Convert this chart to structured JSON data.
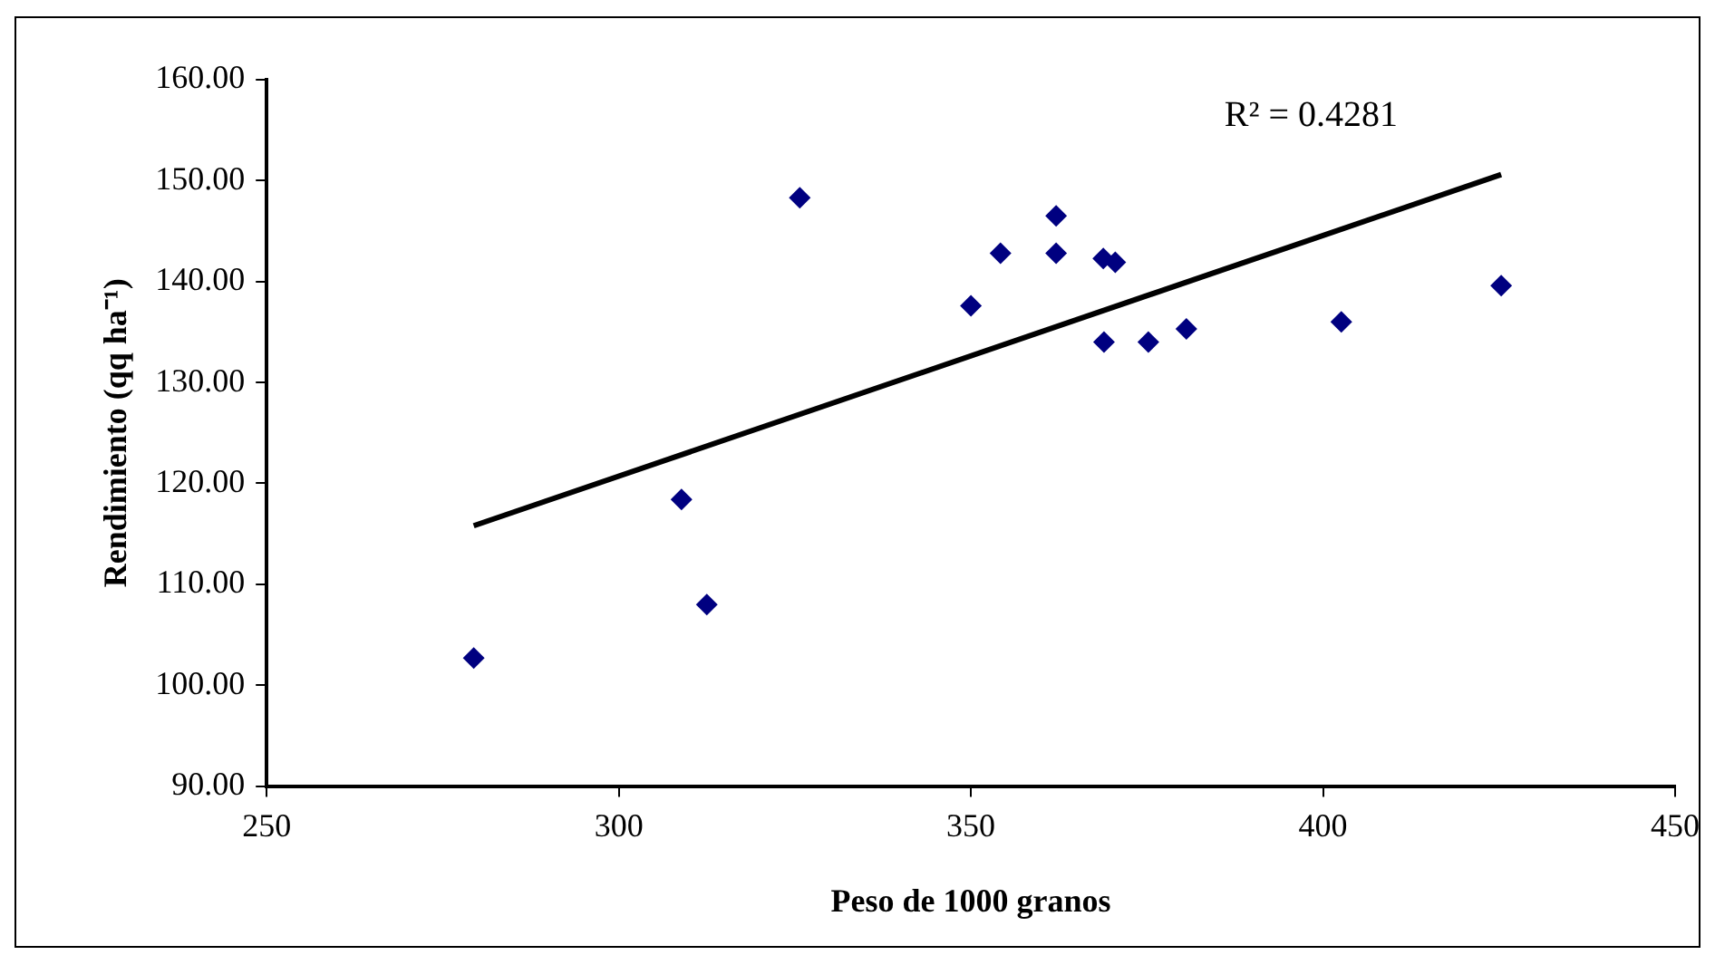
{
  "chart_data": {
    "type": "scatter",
    "xlabel": "Peso de 1000 granos",
    "ylabel": "Rendimiento (qq ha⁻¹)",
    "annotations": [
      "R² = 0.4281"
    ],
    "x": [
      279.4,
      308.9,
      312.5,
      325.7,
      350.0,
      354.2,
      362.1,
      362.1,
      368.8,
      370.5,
      368.9,
      375.2,
      380.6,
      402.6,
      425.3
    ],
    "series": [
      {
        "color": "#000080",
        "marker": "diamond",
        "values": [
          102.7,
          118.4,
          108.0,
          148.3,
          137.6,
          142.8,
          146.5,
          142.8,
          142.3,
          141.9,
          134.0,
          134.0,
          135.3,
          136.0,
          139.6
        ]
      },
      {
        "type": "line",
        "color": "#000000",
        "x": [
          279.4,
          425.3
        ],
        "values": [
          115.8,
          150.6
        ]
      }
    ],
    "xlim": [
      250,
      450
    ],
    "xticks": [
      250,
      300,
      350,
      400,
      450
    ],
    "ylim": [
      90,
      160
    ],
    "yticks": [
      {
        "value": 90,
        "label": "90.00"
      },
      {
        "value": 100,
        "label": "100.00"
      },
      {
        "value": 110,
        "label": "110.00"
      },
      {
        "value": 120,
        "label": "120.00"
      },
      {
        "value": 130,
        "label": "130.00"
      },
      {
        "value": 140,
        "label": "140.00"
      },
      {
        "value": 150,
        "label": "150.00"
      },
      {
        "value": 160,
        "label": "160.00"
      }
    ],
    "grid": false,
    "legend": false
  }
}
